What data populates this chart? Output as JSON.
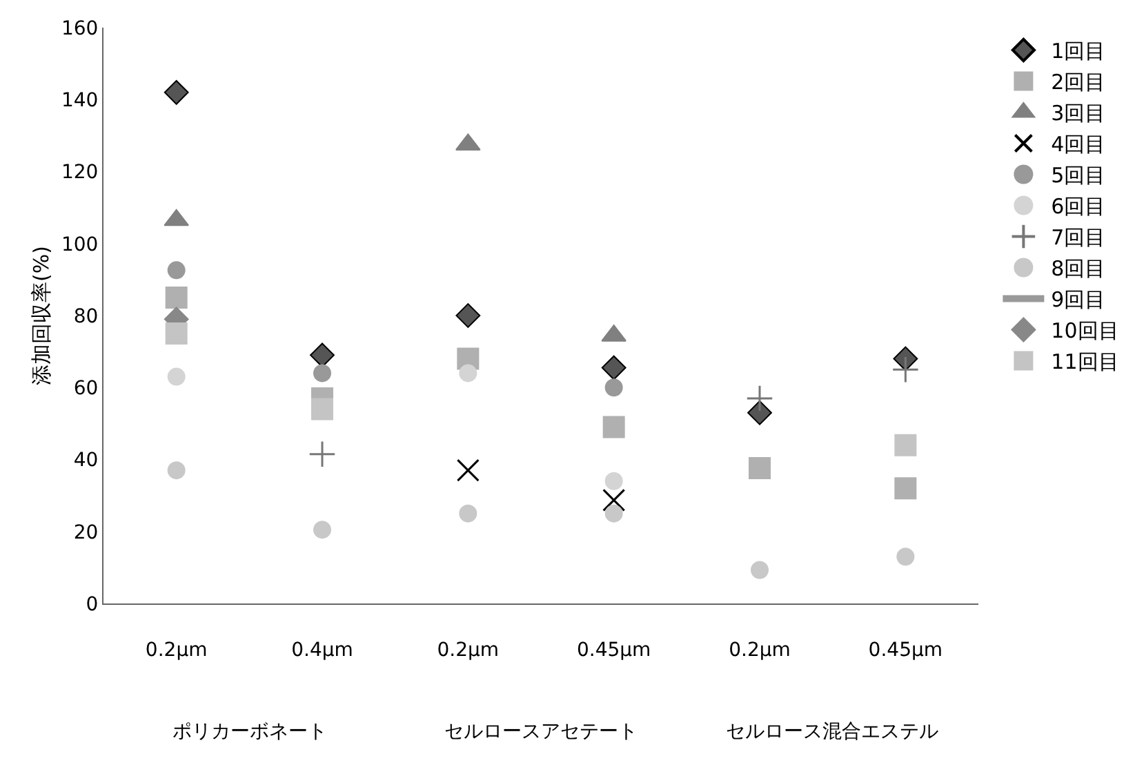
{
  "chart_data": {
    "type": "scatter",
    "ylabel": "添加回収率(%)",
    "categories": [
      "0.2μm",
      "0.4μm",
      "0.2μm",
      "0.45μm",
      "0.2μm",
      "0.45μm"
    ],
    "annotations": [
      "ポリカーボネート",
      "セルロースアセテート",
      "セルロース混合エステル"
    ],
    "ylim": [
      0,
      160
    ],
    "yticks": [
      0,
      20,
      40,
      60,
      80,
      100,
      120,
      140,
      160
    ],
    "grid": false,
    "legend": "right",
    "series": [
      {
        "name": "1回目",
        "color": "#555555",
        "marker": "diamond",
        "values": [
          142,
          69,
          80,
          65.5,
          53,
          68
        ]
      },
      {
        "name": "2回目",
        "color": "#b0b0b0",
        "marker": "square",
        "values": [
          85,
          57,
          68,
          49,
          37.6,
          32
        ]
      },
      {
        "name": "3回目",
        "color": "#808080",
        "marker": "triangle",
        "values": [
          106.5,
          null,
          127.5,
          74.4,
          null,
          null
        ]
      },
      {
        "name": "4回目",
        "color": "#000000",
        "marker": "x",
        "values": [
          null,
          null,
          37,
          28.7,
          null,
          null
        ]
      },
      {
        "name": "5回目",
        "color": "#999999",
        "marker": "circle",
        "values": [
          92.6,
          64,
          null,
          60,
          null,
          null
        ]
      },
      {
        "name": "6回目",
        "color": "#d4d4d4",
        "marker": "circle",
        "values": [
          63,
          null,
          64,
          34,
          null,
          null
        ]
      },
      {
        "name": "7回目",
        "color": "#777777",
        "marker": "cross",
        "values": [
          null,
          41.5,
          null,
          null,
          57,
          65
        ]
      },
      {
        "name": "8回目",
        "color": "#c8c8c8",
        "marker": "circle",
        "values": [
          37,
          20.5,
          25,
          25,
          9.3,
          13
        ]
      },
      {
        "name": "9回目",
        "color": "#999999",
        "marker": "none",
        "values": [
          null,
          null,
          null,
          null,
          null,
          null
        ]
      },
      {
        "name": "10回目",
        "color": "#888888",
        "marker": "diamond",
        "values": [
          79,
          null,
          null,
          null,
          null,
          null
        ]
      },
      {
        "name": "11回目",
        "color": "#c4c4c4",
        "marker": "square",
        "values": [
          75,
          54,
          null,
          null,
          null,
          44
        ]
      }
    ]
  }
}
